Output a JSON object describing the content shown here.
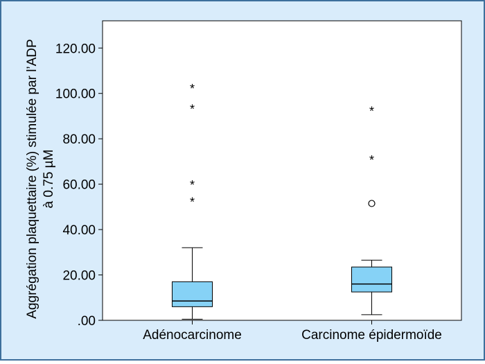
{
  "colors": {
    "background": "#d9ecfb",
    "frame_border": "#3d6f9c",
    "plot_background": "#ffffff",
    "box_fill": "#86d2f6",
    "line": "#000000"
  },
  "chart_data": {
    "type": "box",
    "title": "",
    "xlabel": "",
    "ylabel_lines": [
      "Aggrégation plaquettaire (%) stimulée par l’ADP",
      "à 0.75 µM"
    ],
    "ylim": [
      0,
      132
    ],
    "yticks": [
      0,
      20,
      40,
      60,
      80,
      100,
      120
    ],
    "ytick_labels": [
      ".00",
      "20.00",
      "40.00",
      "60.00",
      "80.00",
      "100.00",
      "120.00"
    ],
    "grid": false,
    "legend": "none",
    "categories": [
      "Adénocarcinome",
      "Carcinome épidermoïde"
    ],
    "boxes": [
      {
        "category": "Adénocarcinome",
        "whisker_low": 0.5,
        "q1": 6,
        "median": 8.5,
        "q3": 17,
        "whisker_high": 32,
        "outliers": [],
        "extremes": [
          53,
          60.5,
          94,
          103
        ]
      },
      {
        "category": "Carcinome épidermoïde",
        "whisker_low": 2.5,
        "q1": 12.5,
        "median": 16,
        "q3": 23.5,
        "whisker_high": 26.5,
        "outliers": [
          51.5
        ],
        "extremes": [
          71.5,
          93
        ]
      }
    ],
    "extreme_marker": "*"
  }
}
